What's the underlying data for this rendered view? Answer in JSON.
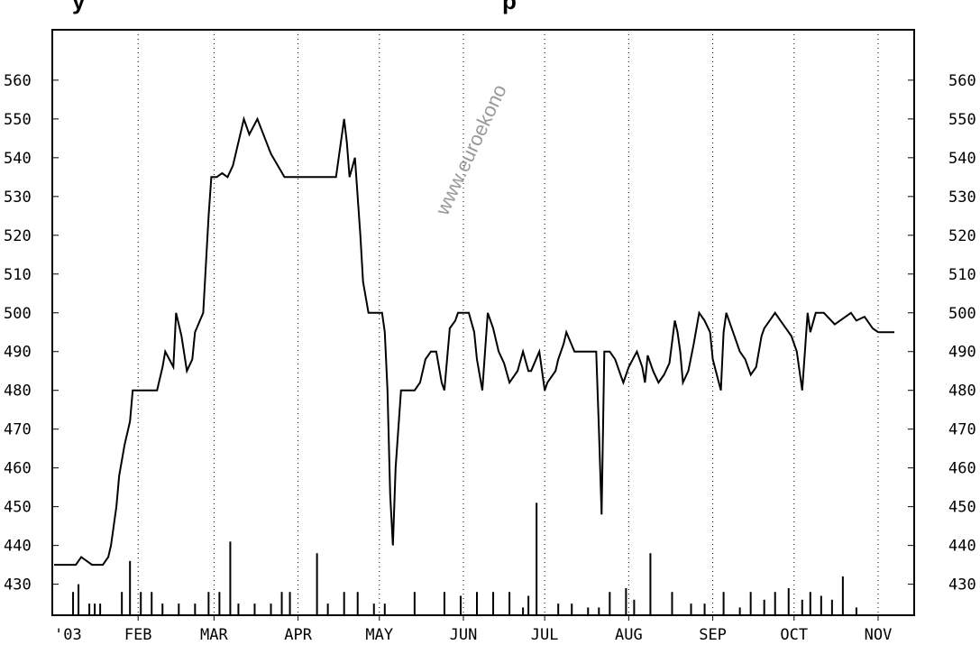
{
  "chart_data": {
    "type": "line",
    "title_fragments": {
      "left": "y",
      "right": "p"
    },
    "watermark": "www.euroekono",
    "colors": {
      "line": "#000000",
      "volume": "#000000",
      "grid": "#000000",
      "watermark": "#9a9a9a"
    },
    "grid": "vertical-dotted",
    "ylim": [
      422,
      573
    ],
    "y_ticks": [
      430,
      440,
      450,
      460,
      470,
      480,
      490,
      500,
      510,
      520,
      530,
      540,
      550,
      560
    ],
    "y_tick_labels": [
      "430",
      "440",
      "450",
      "460",
      "470",
      "480",
      "490",
      "500",
      "510",
      "520",
      "530",
      "540",
      "550",
      "560"
    ],
    "x_range": [
      0,
      310
    ],
    "x_first_label": "'03",
    "months": [
      {
        "label": "FEB",
        "day": 31
      },
      {
        "label": "MAR",
        "day": 59
      },
      {
        "label": "APR",
        "day": 90
      },
      {
        "label": "MAY",
        "day": 120
      },
      {
        "label": "JUN",
        "day": 151
      },
      {
        "label": "JUL",
        "day": 181
      },
      {
        "label": "AUG",
        "day": 212
      },
      {
        "label": "SEP",
        "day": 243
      },
      {
        "label": "OCT",
        "day": 273
      },
      {
        "label": "NOV",
        "day": 304
      }
    ],
    "series": [
      {
        "x": [
          0,
          8,
          10,
          12,
          14,
          18,
          20,
          21,
          23,
          24,
          26,
          28,
          29,
          32,
          34,
          38,
          40,
          41,
          44,
          45,
          47,
          49,
          51,
          52,
          55,
          57,
          58,
          60,
          62,
          64,
          66,
          70,
          72,
          75,
          80,
          85,
          88,
          90,
          91,
          94,
          95,
          96,
          99,
          102,
          103,
          104,
          106,
          107,
          108,
          109,
          111,
          113,
          114,
          116,
          121,
          122,
          123,
          124,
          125,
          126,
          128,
          132,
          133,
          135,
          137,
          139,
          141,
          143,
          144,
          146,
          148,
          149,
          151,
          153,
          155,
          156,
          158,
          160,
          162,
          164,
          166,
          168,
          171,
          173,
          175,
          176,
          179,
          181,
          182,
          185,
          186,
          188,
          189,
          192,
          193,
          194,
          195,
          198,
          199,
          200,
          201,
          202,
          203,
          205,
          207,
          209,
          210,
          212,
          215,
          217,
          218,
          219,
          221,
          223,
          225,
          227,
          229,
          230,
          231,
          232,
          234,
          236,
          238,
          240,
          242,
          243,
          246,
          247,
          248,
          250,
          252,
          253,
          255,
          257,
          259,
          260,
          261,
          262,
          264,
          266,
          268,
          270,
          272,
          274,
          276,
          278,
          279,
          281,
          284,
          288,
          292,
          294,
          296,
          299,
          302,
          304,
          308,
          310
        ],
        "y": [
          435,
          435,
          437,
          436,
          435,
          435,
          437,
          440,
          450,
          458,
          466,
          472,
          480,
          480,
          480,
          480,
          486,
          490,
          486,
          500,
          494,
          485,
          488,
          495,
          500,
          525,
          535,
          535,
          536,
          535,
          538,
          550,
          546,
          550,
          541,
          535,
          535,
          535,
          535,
          535,
          535,
          535,
          535,
          535,
          535,
          535,
          545,
          550,
          544,
          535,
          540,
          520,
          508,
          500,
          500,
          495,
          480,
          453,
          440,
          460,
          480,
          480,
          480,
          482,
          488,
          490,
          490,
          482,
          480,
          496,
          498,
          500,
          500,
          500,
          495,
          488,
          480,
          500,
          496,
          490,
          487,
          482,
          485,
          490,
          485,
          485,
          490,
          480,
          482,
          485,
          488,
          492,
          495,
          490,
          490,
          490,
          490,
          490,
          490,
          490,
          470,
          448,
          490,
          490,
          488,
          484,
          482,
          486,
          490,
          486,
          482,
          489,
          485,
          482,
          484,
          487,
          498,
          495,
          490,
          482,
          485,
          492,
          500,
          498,
          495,
          488,
          480,
          495,
          500,
          496,
          492,
          490,
          488,
          484,
          486,
          490,
          494,
          496,
          498,
          500,
          498,
          496,
          494,
          490,
          480,
          500,
          495,
          500,
          500,
          497,
          499,
          500,
          498,
          499,
          496,
          495,
          495,
          495
        ],
        "volume_base": 422,
        "volume": [
          [
            7,
            428
          ],
          [
            9,
            430
          ],
          [
            13,
            425
          ],
          [
            15,
            425
          ],
          [
            17,
            425
          ],
          [
            25,
            428
          ],
          [
            28,
            436
          ],
          [
            32,
            428
          ],
          [
            36,
            428
          ],
          [
            40,
            425
          ],
          [
            46,
            425
          ],
          [
            52,
            425
          ],
          [
            57,
            428
          ],
          [
            61,
            428
          ],
          [
            65,
            441
          ],
          [
            68,
            425
          ],
          [
            74,
            425
          ],
          [
            80,
            425
          ],
          [
            84,
            428
          ],
          [
            87,
            428
          ],
          [
            97,
            438
          ],
          [
            101,
            425
          ],
          [
            107,
            428
          ],
          [
            112,
            428
          ],
          [
            118,
            425
          ],
          [
            122,
            425
          ],
          [
            133,
            428
          ],
          [
            144,
            428
          ],
          [
            150,
            427
          ],
          [
            156,
            428
          ],
          [
            162,
            428
          ],
          [
            168,
            428
          ],
          [
            173,
            424
          ],
          [
            175,
            427
          ],
          [
            178,
            451
          ],
          [
            186,
            425
          ],
          [
            191,
            425
          ],
          [
            197,
            424
          ],
          [
            201,
            424
          ],
          [
            205,
            428
          ],
          [
            211,
            429
          ],
          [
            214,
            426
          ],
          [
            220,
            438
          ],
          [
            228,
            428
          ],
          [
            235,
            425
          ],
          [
            240,
            425
          ],
          [
            247,
            428
          ],
          [
            253,
            424
          ],
          [
            257,
            428
          ],
          [
            262,
            426
          ],
          [
            266,
            428
          ],
          [
            271,
            429
          ],
          [
            276,
            426
          ],
          [
            279,
            428
          ],
          [
            283,
            427
          ],
          [
            287,
            426
          ],
          [
            291,
            432
          ],
          [
            296,
            424
          ]
        ]
      }
    ]
  }
}
